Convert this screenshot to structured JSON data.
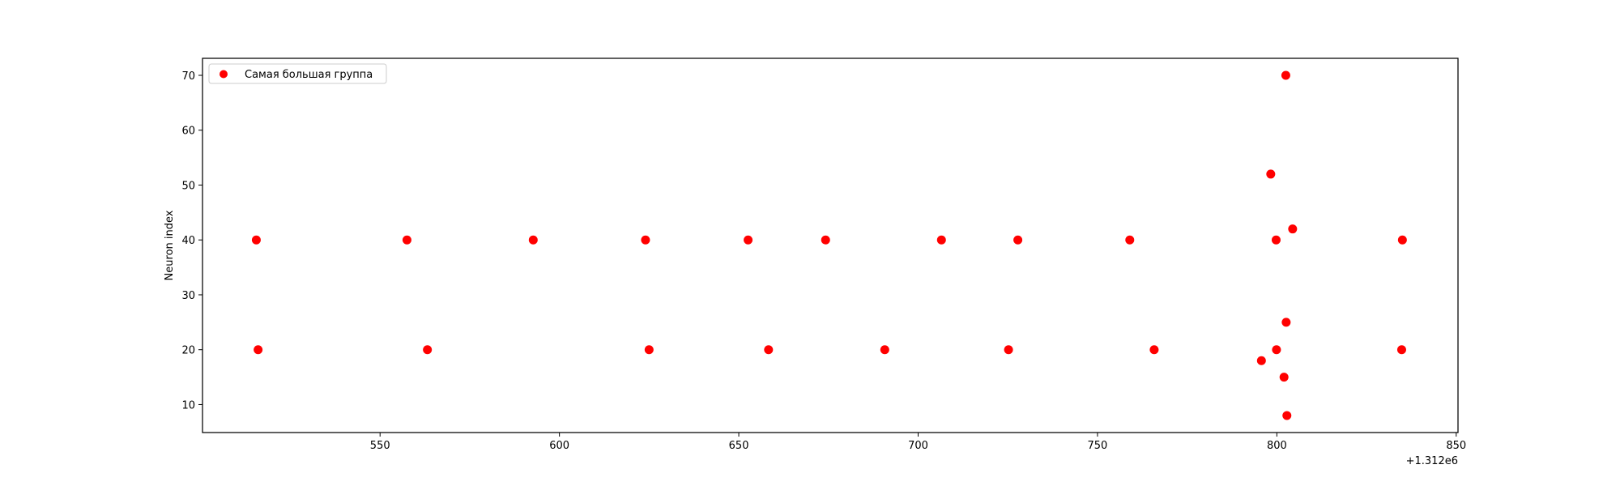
{
  "chart_data": {
    "type": "scatter",
    "title": "",
    "xlabel": "",
    "ylabel": "Neuron index",
    "x_offset_label": "+1.312e6",
    "xlim": [
      500.5,
      850.5
    ],
    "ylim": [
      4.9,
      73.1
    ],
    "x_ticks": [
      550,
      600,
      650,
      700,
      750,
      800,
      850
    ],
    "y_ticks": [
      10,
      20,
      30,
      40,
      50,
      60,
      70
    ],
    "grid": false,
    "legend": {
      "placement": "top-left",
      "entries": [
        {
          "label": "Самая большая группа",
          "color": "#ff0000",
          "marker": "circle"
        }
      ]
    },
    "series": [
      {
        "name": "Самая большая группа",
        "color": "#ff0000",
        "points": [
          {
            "x": 515.5,
            "y": 40
          },
          {
            "x": 516.0,
            "y": 20
          },
          {
            "x": 557.5,
            "y": 40
          },
          {
            "x": 563.2,
            "y": 20
          },
          {
            "x": 592.7,
            "y": 40
          },
          {
            "x": 624.0,
            "y": 40
          },
          {
            "x": 625.0,
            "y": 20
          },
          {
            "x": 652.6,
            "y": 40
          },
          {
            "x": 658.3,
            "y": 20
          },
          {
            "x": 674.2,
            "y": 40
          },
          {
            "x": 690.7,
            "y": 20
          },
          {
            "x": 706.5,
            "y": 40
          },
          {
            "x": 725.2,
            "y": 20
          },
          {
            "x": 727.8,
            "y": 40
          },
          {
            "x": 759.0,
            "y": 40
          },
          {
            "x": 765.8,
            "y": 20
          },
          {
            "x": 795.7,
            "y": 18
          },
          {
            "x": 798.3,
            "y": 52
          },
          {
            "x": 799.8,
            "y": 40
          },
          {
            "x": 799.9,
            "y": 20
          },
          {
            "x": 802.0,
            "y": 15
          },
          {
            "x": 802.5,
            "y": 70
          },
          {
            "x": 802.6,
            "y": 25
          },
          {
            "x": 802.8,
            "y": 8
          },
          {
            "x": 804.4,
            "y": 42
          },
          {
            "x": 834.8,
            "y": 20
          },
          {
            "x": 835.0,
            "y": 40
          }
        ]
      }
    ]
  }
}
